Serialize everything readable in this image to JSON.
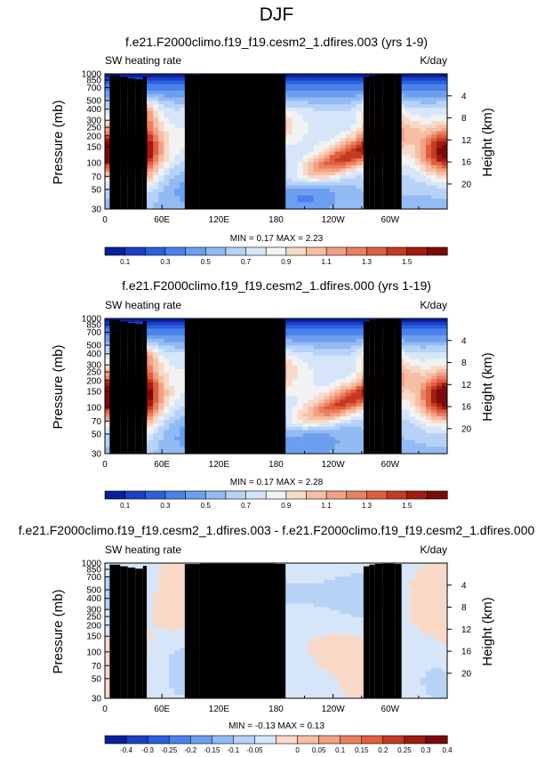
{
  "page_title": "DJF",
  "colors": {
    "main_scale": [
      "#0a1f9a",
      "#1b3fc4",
      "#2b60df",
      "#4a82ec",
      "#6d9ff0",
      "#92bbf3",
      "#b6d2f6",
      "#d6e6f8",
      "#f2f2f2",
      "#f8d9c8",
      "#f6bfa5",
      "#f2a184",
      "#ea8060",
      "#de5f3c",
      "#c43a22",
      "#a21a10",
      "#7c0a08"
    ],
    "diff_scale": [
      "#0a1f9a",
      "#1b3fc4",
      "#2b60df",
      "#4a82ec",
      "#6d9ff0",
      "#92bbf3",
      "#b6d2f6",
      "#d6e6f8",
      "#f8d9c8",
      "#f6bfa5",
      "#f2a184",
      "#ea8060",
      "#de5f3c",
      "#c43a22",
      "#a21a10",
      "#7c0a08"
    ],
    "topography": "#000000"
  },
  "chart_data": [
    {
      "id": "panel1",
      "type": "heatmap",
      "title": "f.e21.F2000climo.f19_f19.cesm2_1.dfires.003 (yrs 1-9)",
      "left_label": "SW heating rate",
      "right_label": "K/day",
      "ylabel": "Pressure (mb)",
      "y2label": "Height (km)",
      "x_ticks": [
        "0",
        "60E",
        "120E",
        "180",
        "120W",
        "60W"
      ],
      "x_tick_lon": [
        0,
        60,
        120,
        180,
        240,
        300
      ],
      "xlim": [
        0,
        360
      ],
      "y_ticks": [
        "1000",
        "850",
        "700",
        "500",
        "400",
        "300",
        "250",
        "200",
        "150",
        "100",
        "70",
        "50",
        "30"
      ],
      "y_tick_p": [
        1000,
        850,
        700,
        500,
        400,
        300,
        250,
        200,
        150,
        100,
        70,
        50,
        30
      ],
      "ylim": [
        1000,
        30
      ],
      "height_ticks": [
        "4",
        "8",
        "12",
        "16",
        "20"
      ],
      "height_km": [
        4,
        8,
        12,
        16,
        20
      ],
      "stats": "MIN = 0.17 MAX = 2.23",
      "colorbar_labels": [
        "0.1",
        "0.3",
        "0.5",
        "0.7",
        "0.9",
        "1.1",
        "1.3",
        "1.5"
      ],
      "colorbar_levels": [
        0,
        0.1,
        0.2,
        0.3,
        0.4,
        0.5,
        0.6,
        0.7,
        0.8,
        0.9,
        1.0,
        1.1,
        1.2,
        1.3,
        1.4,
        1.5,
        1.6
      ],
      "field": "exp003"
    },
    {
      "id": "panel2",
      "type": "heatmap",
      "title": "f.e21.F2000climo.f19_f19.cesm2_1.dfires.000 (yrs 1-19)",
      "left_label": "SW heating rate",
      "right_label": "K/day",
      "ylabel": "Pressure (mb)",
      "y2label": "Height (km)",
      "x_ticks": [
        "0",
        "60E",
        "120E",
        "180",
        "120W",
        "60W"
      ],
      "x_tick_lon": [
        0,
        60,
        120,
        180,
        240,
        300
      ],
      "xlim": [
        0,
        360
      ],
      "y_ticks": [
        "1000",
        "850",
        "700",
        "500",
        "400",
        "300",
        "250",
        "200",
        "150",
        "100",
        "70",
        "50",
        "30"
      ],
      "y_tick_p": [
        1000,
        850,
        700,
        500,
        400,
        300,
        250,
        200,
        150,
        100,
        70,
        50,
        30
      ],
      "ylim": [
        1000,
        30
      ],
      "height_ticks": [
        "4",
        "8",
        "12",
        "16",
        "20"
      ],
      "height_km": [
        4,
        8,
        12,
        16,
        20
      ],
      "stats": "MIN = 0.17 MAX = 2.28",
      "colorbar_labels": [
        "0.1",
        "0.3",
        "0.5",
        "0.7",
        "0.9",
        "1.1",
        "1.3",
        "1.5"
      ],
      "colorbar_levels": [
        0,
        0.1,
        0.2,
        0.3,
        0.4,
        0.5,
        0.6,
        0.7,
        0.8,
        0.9,
        1.0,
        1.1,
        1.2,
        1.3,
        1.4,
        1.5,
        1.6
      ],
      "field": "exp000"
    },
    {
      "id": "panel3",
      "type": "heatmap",
      "title": "f.e21.F2000climo.f19_f19.cesm2_1.dfires.003 - f.e21.F2000climo.f19_f19.cesm2_1.dfires.000",
      "left_label": "SW heating rate",
      "right_label": "K/day",
      "ylabel": "Pressure (mb)",
      "y2label": "Height (km)",
      "x_ticks": [
        "0",
        "60E",
        "120E",
        "180",
        "120W",
        "60W"
      ],
      "x_tick_lon": [
        0,
        60,
        120,
        180,
        240,
        300
      ],
      "xlim": [
        0,
        360
      ],
      "y_ticks": [
        "1000",
        "850",
        "700",
        "500",
        "400",
        "300",
        "250",
        "200",
        "150",
        "100",
        "70",
        "50",
        "30"
      ],
      "y_tick_p": [
        1000,
        850,
        700,
        500,
        400,
        300,
        250,
        200,
        150,
        100,
        70,
        50,
        30
      ],
      "ylim": [
        1000,
        30
      ],
      "height_ticks": [
        "4",
        "8",
        "12",
        "16",
        "20"
      ],
      "height_km": [
        4,
        8,
        12,
        16,
        20
      ],
      "stats": "MIN = -0.13 MAX = 0.13",
      "colorbar_labels": [
        "-0.4",
        "-0.3",
        "-0.25",
        "-0.2",
        "-0.15",
        "-0.1",
        "-0.05",
        "0",
        "0.05",
        "0.1",
        "0.15",
        "0.2",
        "0.25",
        "0.3",
        "0.4"
      ],
      "colorbar_levels": [
        -0.45,
        -0.4,
        -0.3,
        -0.25,
        -0.2,
        -0.15,
        -0.1,
        -0.05,
        0,
        0.05,
        0.1,
        0.15,
        0.2,
        0.25,
        0.3,
        0.4,
        0.45
      ],
      "field": "diff"
    }
  ]
}
